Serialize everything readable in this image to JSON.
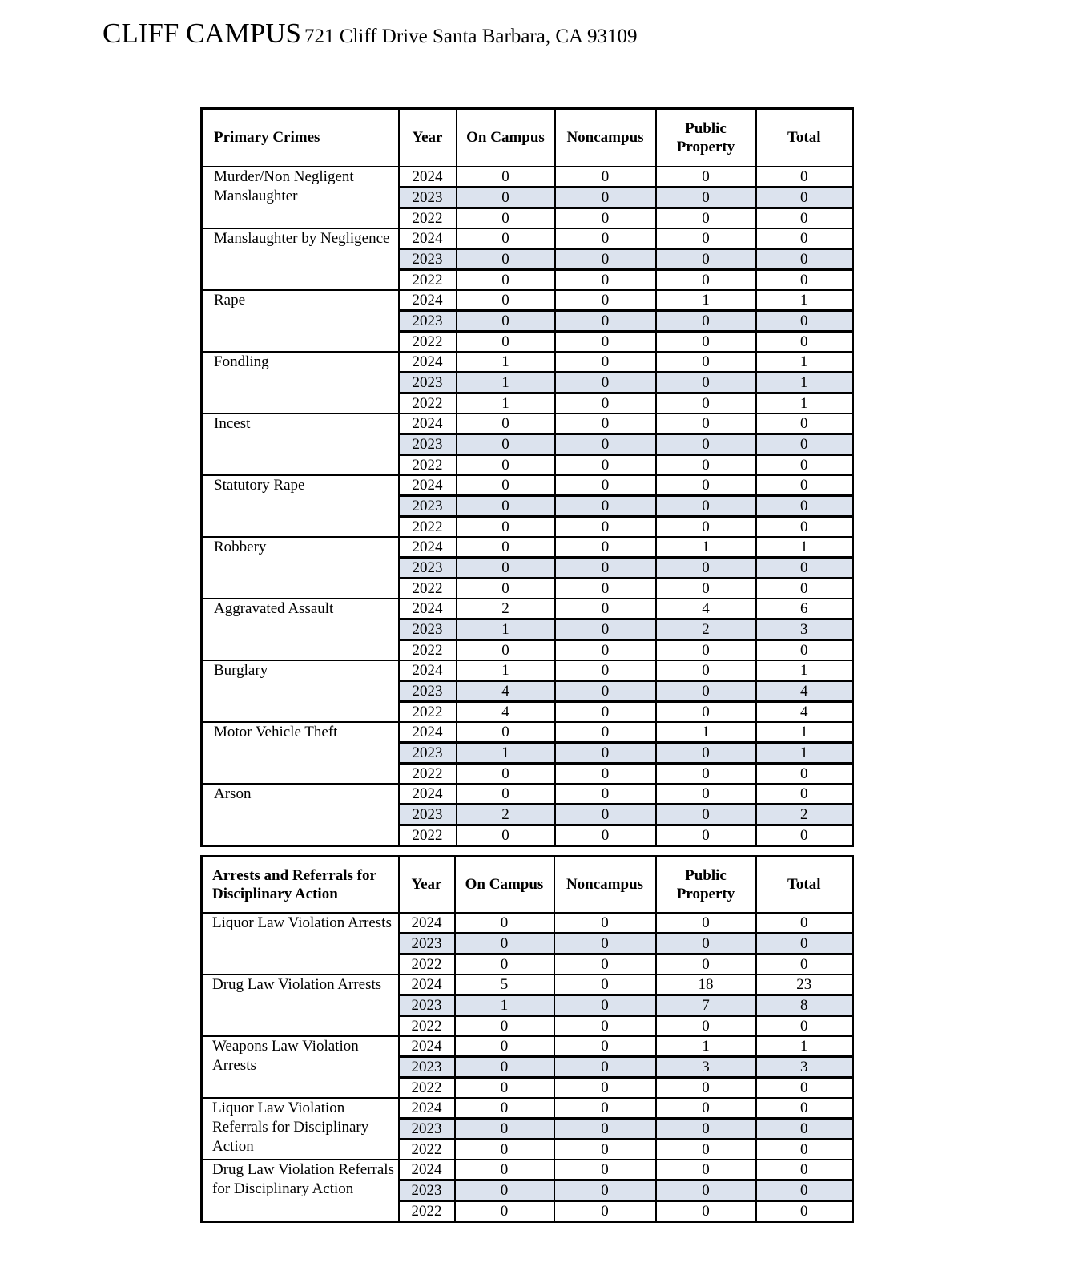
{
  "title": {
    "campus": "CLIFF CAMPUS",
    "address": "721 Cliff Drive Santa Barbara, CA 93109"
  },
  "colors": {
    "shaded_row": "#dce3ee",
    "border": "#000000"
  },
  "primary_crimes": {
    "headers": [
      "Primary Crimes",
      "Year",
      "On Campus",
      "Noncampus",
      "Public Property",
      "Total"
    ],
    "groups": [
      {
        "label": "Murder/Non Negligent Manslaughter",
        "rows": [
          [
            "2024",
            "0",
            "0",
            "0",
            "0"
          ],
          [
            "2023",
            "0",
            "0",
            "0",
            "0"
          ],
          [
            "2022",
            "0",
            "0",
            "0",
            "0"
          ]
        ]
      },
      {
        "label": "Manslaughter by Negligence",
        "rows": [
          [
            "2024",
            "0",
            "0",
            "0",
            "0"
          ],
          [
            "2023",
            "0",
            "0",
            "0",
            "0"
          ],
          [
            "2022",
            "0",
            "0",
            "0",
            "0"
          ]
        ]
      },
      {
        "label": "Rape",
        "rows": [
          [
            "2024",
            "0",
            "0",
            "1",
            "1"
          ],
          [
            "2023",
            "0",
            "0",
            "0",
            "0"
          ],
          [
            "2022",
            "0",
            "0",
            "0",
            "0"
          ]
        ]
      },
      {
        "label": "Fondling",
        "rows": [
          [
            "2024",
            "1",
            "0",
            "0",
            "1"
          ],
          [
            "2023",
            "1",
            "0",
            "0",
            "1"
          ],
          [
            "2022",
            "1",
            "0",
            "0",
            "1"
          ]
        ]
      },
      {
        "label": "Incest",
        "rows": [
          [
            "2024",
            "0",
            "0",
            "0",
            "0"
          ],
          [
            "2023",
            "0",
            "0",
            "0",
            "0"
          ],
          [
            "2022",
            "0",
            "0",
            "0",
            "0"
          ]
        ]
      },
      {
        "label": "Statutory Rape",
        "rows": [
          [
            "2024",
            "0",
            "0",
            "0",
            "0"
          ],
          [
            "2023",
            "0",
            "0",
            "0",
            "0"
          ],
          [
            "2022",
            "0",
            "0",
            "0",
            "0"
          ]
        ]
      },
      {
        "label": "Robbery",
        "rows": [
          [
            "2024",
            "0",
            "0",
            "1",
            "1"
          ],
          [
            "2023",
            "0",
            "0",
            "0",
            "0"
          ],
          [
            "2022",
            "0",
            "0",
            "0",
            "0"
          ]
        ]
      },
      {
        "label": "Aggravated Assault",
        "rows": [
          [
            "2024",
            "2",
            "0",
            "4",
            "6"
          ],
          [
            "2023",
            "1",
            "0",
            "2",
            "3"
          ],
          [
            "2022",
            "0",
            "0",
            "0",
            "0"
          ]
        ]
      },
      {
        "label": "Burglary",
        "rows": [
          [
            "2024",
            "1",
            "0",
            "0",
            "1"
          ],
          [
            "2023",
            "4",
            "0",
            "0",
            "4"
          ],
          [
            "2022",
            "4",
            "0",
            "0",
            "4"
          ]
        ]
      },
      {
        "label": "Motor Vehicle Theft",
        "rows": [
          [
            "2024",
            "0",
            "0",
            "1",
            "1"
          ],
          [
            "2023",
            "1",
            "0",
            "0",
            "1"
          ],
          [
            "2022",
            "0",
            "0",
            "0",
            "0"
          ]
        ]
      },
      {
        "label": "Arson",
        "rows": [
          [
            "2024",
            "0",
            "0",
            "0",
            "0"
          ],
          [
            "2023",
            "2",
            "0",
            "0",
            "2"
          ],
          [
            "2022",
            "0",
            "0",
            "0",
            "0"
          ]
        ]
      }
    ]
  },
  "arrests": {
    "headers": [
      "Arrests and Referrals for Disciplinary Action",
      "Year",
      "On Campus",
      "Noncampus",
      "Public Property",
      "Total"
    ],
    "groups": [
      {
        "label": "Liquor Law Violation Arrests",
        "rows": [
          [
            "2024",
            "0",
            "0",
            "0",
            "0"
          ],
          [
            "2023",
            "0",
            "0",
            "0",
            "0"
          ],
          [
            "2022",
            "0",
            "0",
            "0",
            "0"
          ]
        ]
      },
      {
        "label": "Drug Law Violation Arrests",
        "rows": [
          [
            "2024",
            "5",
            "0",
            "18",
            "23"
          ],
          [
            "2023",
            "1",
            "0",
            "7",
            "8"
          ],
          [
            "2022",
            "0",
            "0",
            "0",
            "0"
          ]
        ]
      },
      {
        "label": "Weapons Law Violation Arrests",
        "rows": [
          [
            "2024",
            "0",
            "0",
            "1",
            "1"
          ],
          [
            "2023",
            "0",
            "0",
            "3",
            "3"
          ],
          [
            "2022",
            "0",
            "0",
            "0",
            "0"
          ]
        ]
      },
      {
        "label": "Liquor Law Violation Referrals for Disciplinary Action",
        "rows": [
          [
            "2024",
            "0",
            "0",
            "0",
            "0"
          ],
          [
            "2023",
            "0",
            "0",
            "0",
            "0"
          ],
          [
            "2022",
            "0",
            "0",
            "0",
            "0"
          ]
        ]
      },
      {
        "label": "Drug Law Violation Referrals for Disciplinary Action",
        "rows": [
          [
            "2024",
            "0",
            "0",
            "0",
            "0"
          ],
          [
            "2023",
            "0",
            "0",
            "0",
            "0"
          ],
          [
            "2022",
            "0",
            "0",
            "0",
            "0"
          ]
        ]
      }
    ]
  }
}
